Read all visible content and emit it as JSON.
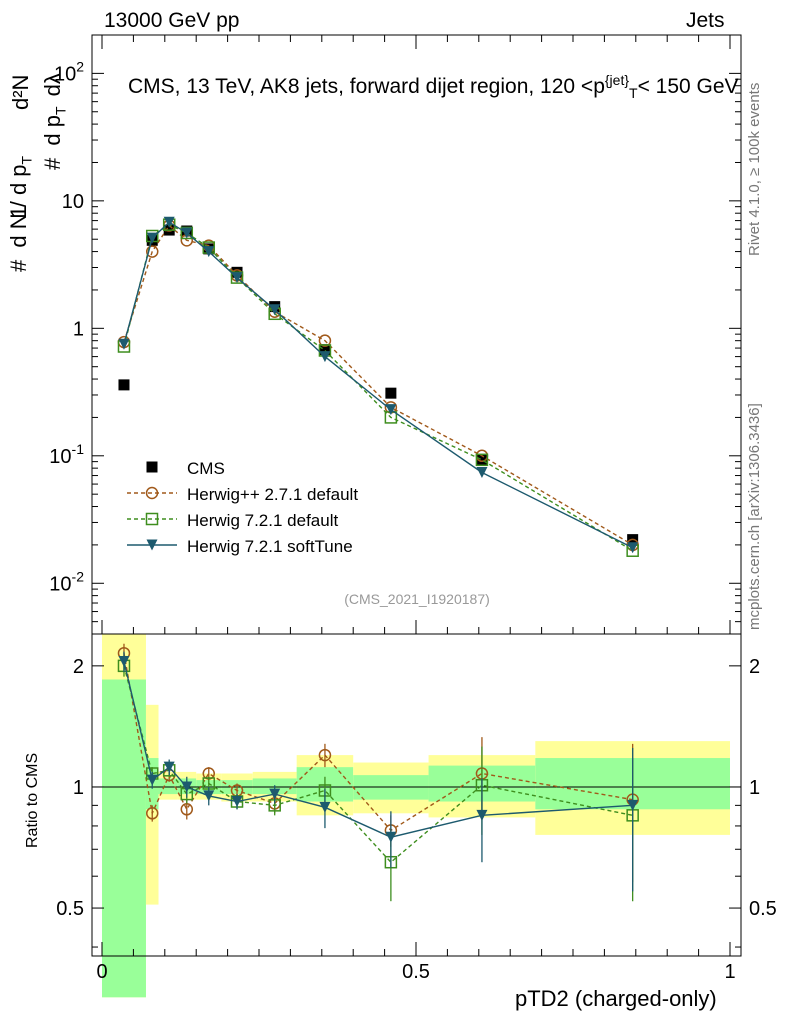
{
  "header": {
    "left": "13000 GeV pp",
    "right": "Jets"
  },
  "side_labels": {
    "rivet": "Rivet 4.1.0, ≥ 100k events",
    "mcplots": "mcplots.cern.ch [arXiv:1306.3436]"
  },
  "title": {
    "prefix": "CMS, 13 TeV, AK8 jets, forward dijet region, 120 <p",
    "sup": "{jet}",
    "sub": "T",
    "suffix": "< 150 GeV"
  },
  "analysis_id": "(CMS_2021_I1920187)",
  "y_axis_top": {
    "hash": "#",
    "frac": "1",
    "dN": "d N / d p",
    "dN_sub": "T",
    "hash2": "#",
    "d2N": "d²N",
    "dpdl": "d p",
    "dpdl_sub": "T",
    "dl": "dλ"
  },
  "y_axis_bottom": "Ratio to CMS",
  "x_axis_label": "pTD2 (charged-only)",
  "colors": {
    "cms": "#000000",
    "herwigpp": "#a0591a",
    "herwig721": "#3e8e1e",
    "softtune": "#1d5a6e",
    "band_yellow": "#ffff99",
    "band_green": "#99ff99"
  },
  "chart_data": [
    {
      "type": "scatter",
      "panel": "main",
      "yscale": "log",
      "xlim": [
        0,
        1
      ],
      "ylim": [
        0.004,
        200
      ],
      "y_ticks": [
        {
          "value": 0.01,
          "base": "10",
          "exp": "-2"
        },
        {
          "value": 0.1,
          "base": "10",
          "exp": "-1"
        },
        {
          "value": 1,
          "label": "1"
        },
        {
          "value": 10,
          "label": "10"
        },
        {
          "value": 100,
          "base": "10",
          "exp": "2"
        }
      ],
      "x": [
        0.035,
        0.08,
        0.107,
        0.135,
        0.17,
        0.215,
        0.275,
        0.355,
        0.46,
        0.605,
        0.845
      ],
      "series": [
        {
          "name": "CMS",
          "marker": "square",
          "values": [
            0.36,
            4.9,
            5.9,
            5.8,
            4.2,
            2.75,
            1.48,
            0.68,
            0.31,
            0.093,
            0.022
          ]
        },
        {
          "name": "Herwig++ 2.7.1 default",
          "marker": "circle",
          "values": [
            0.78,
            4.0,
            6.4,
            4.9,
            4.45,
            2.6,
            1.35,
            0.8,
            0.24,
            0.1,
            0.02
          ]
        },
        {
          "name": "Herwig 7.2.1 default",
          "marker": "open-square",
          "values": [
            0.72,
            5.3,
            6.5,
            5.6,
            4.3,
            2.5,
            1.3,
            0.67,
            0.2,
            0.093,
            0.018
          ]
        },
        {
          "name": "Herwig 7.2.1 softTune",
          "marker": "triangle-down",
          "values": [
            0.75,
            5.1,
            6.8,
            5.6,
            4.0,
            2.5,
            1.4,
            0.6,
            0.23,
            0.074,
            0.019
          ]
        }
      ]
    },
    {
      "type": "scatter",
      "panel": "ratio",
      "xlim": [
        0,
        1
      ],
      "ylim": [
        0.38,
        2.4
      ],
      "y_ticks": [
        "0.5",
        "1",
        "2"
      ],
      "x_ticks": [
        "0",
        "0.5",
        "1"
      ],
      "bands": [
        {
          "x0": 0.0,
          "x1": 0.07,
          "yellow": [
            0.3,
            2.4
          ],
          "green": [
            0.3,
            1.85
          ]
        },
        {
          "x0": 0.07,
          "x1": 0.09,
          "yellow": [
            0.51,
            1.6
          ],
          "green": [
            0.88,
            1.18
          ]
        },
        {
          "x0": 0.09,
          "x1": 0.12,
          "yellow": [
            0.93,
            1.09
          ],
          "green": [
            0.96,
            1.05
          ]
        },
        {
          "x0": 0.12,
          "x1": 0.15,
          "yellow": [
            0.93,
            1.09
          ],
          "green": [
            0.96,
            1.05
          ]
        },
        {
          "x0": 0.15,
          "x1": 0.19,
          "yellow": [
            0.93,
            1.08
          ],
          "green": [
            0.96,
            1.04
          ]
        },
        {
          "x0": 0.19,
          "x1": 0.24,
          "yellow": [
            0.92,
            1.08
          ],
          "green": [
            0.96,
            1.04
          ]
        },
        {
          "x0": 0.24,
          "x1": 0.31,
          "yellow": [
            0.92,
            1.09
          ],
          "green": [
            0.96,
            1.05
          ]
        },
        {
          "x0": 0.31,
          "x1": 0.4,
          "yellow": [
            0.85,
            1.2
          ],
          "green": [
            0.92,
            1.12
          ]
        },
        {
          "x0": 0.4,
          "x1": 0.52,
          "yellow": [
            0.86,
            1.15
          ],
          "green": [
            0.93,
            1.07
          ]
        },
        {
          "x0": 0.52,
          "x1": 0.69,
          "yellow": [
            0.84,
            1.2
          ],
          "green": [
            0.92,
            1.13
          ]
        },
        {
          "x0": 0.69,
          "x1": 1.0,
          "yellow": [
            0.76,
            1.3
          ],
          "green": [
            0.88,
            1.18
          ]
        }
      ],
      "x": [
        0.035,
        0.08,
        0.107,
        0.135,
        0.17,
        0.215,
        0.275,
        0.355,
        0.46,
        0.605,
        0.845
      ],
      "series": [
        {
          "name": "Herwig++ 2.7.1 default",
          "marker": "circle",
          "values": [
            2.15,
            0.86,
            1.07,
            0.88,
            1.08,
            0.98,
            0.91,
            1.2,
            0.78,
            1.08,
            0.93
          ],
          "errors": [
            0.12,
            0.04,
            0.04,
            0.05,
            0.04,
            0.04,
            0.05,
            0.08,
            0.07,
            0.25,
            0.35
          ]
        },
        {
          "name": "Herwig 7.2.1 default",
          "marker": "open-square",
          "values": [
            2.0,
            1.08,
            1.1,
            0.96,
            1.02,
            0.92,
            0.9,
            0.98,
            0.65,
            1.01,
            0.85
          ],
          "errors": [
            0.12,
            0.04,
            0.04,
            0.05,
            0.04,
            0.04,
            0.05,
            0.08,
            0.13,
            0.25,
            0.33
          ]
        },
        {
          "name": "Herwig 7.2.1 softTune",
          "marker": "triangle-down",
          "values": [
            2.05,
            1.04,
            1.12,
            1.0,
            0.95,
            0.92,
            0.96,
            0.89,
            0.75,
            0.85,
            0.9
          ],
          "errors": [
            0.12,
            0.05,
            0.05,
            0.06,
            0.05,
            0.04,
            0.05,
            0.1,
            0.12,
            0.2,
            0.35
          ]
        }
      ]
    }
  ],
  "legend": [
    {
      "label": "CMS",
      "marker": "square"
    },
    {
      "label": "Herwig++ 2.7.1 default",
      "marker": "circle"
    },
    {
      "label": "Herwig 7.2.1 default",
      "marker": "open-square"
    },
    {
      "label": "Herwig 7.2.1 softTune",
      "marker": "triangle-down"
    }
  ]
}
